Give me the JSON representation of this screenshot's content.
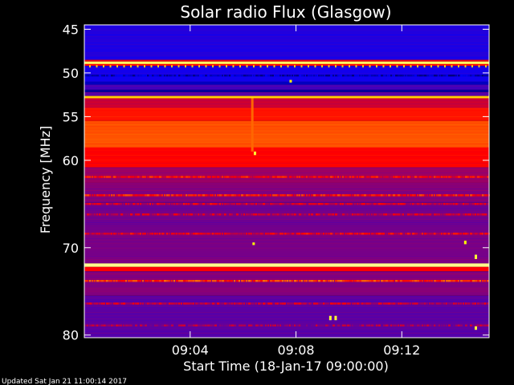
{
  "chart_data": {
    "type": "heatmap",
    "title": "Solar radio Flux (Glasgow)",
    "xlabel": "Start Time (18-Jan-17 09:00:00)",
    "ylabel": "Frequency [MHz]",
    "x_unit": "minutes",
    "x_range": [
      0,
      15.3
    ],
    "x_ticks": [
      {
        "value": 4,
        "label": "09:04"
      },
      {
        "value": 8,
        "label": "09:08"
      },
      {
        "value": 12,
        "label": "09:12"
      }
    ],
    "y_range": [
      44.5,
      80.3
    ],
    "y_inverted": true,
    "y_ticks": [
      {
        "value": 45,
        "label": "45"
      },
      {
        "value": 50,
        "label": "50"
      },
      {
        "value": 55,
        "label": "55"
      },
      {
        "value": 60,
        "label": "60"
      },
      {
        "value": 70,
        "label": "70"
      },
      {
        "value": 80,
        "label": "80"
      }
    ],
    "colormap": [
      "#000000",
      "#0000ff",
      "#ff0000",
      "#ffff00",
      "#ffffff"
    ],
    "bands": [
      {
        "from": 44.5,
        "to": 48.5,
        "level": 0.28
      },
      {
        "from": 48.5,
        "to": 48.7,
        "level": 0.48
      },
      {
        "from": 48.7,
        "to": 48.95,
        "level": 0.85
      },
      {
        "from": 48.95,
        "to": 49.2,
        "level": 0.5
      },
      {
        "from": 49.2,
        "to": 51.0,
        "level": 0.27
      },
      {
        "from": 51.0,
        "to": 51.3,
        "level": 0.18
      },
      {
        "from": 51.3,
        "to": 51.9,
        "level": 0.32
      },
      {
        "from": 51.9,
        "to": 52.2,
        "level": 0.15
      },
      {
        "from": 52.2,
        "to": 52.6,
        "level": 0.34
      },
      {
        "from": 52.6,
        "to": 52.9,
        "level": 0.7
      },
      {
        "from": 52.9,
        "to": 54.0,
        "level": 0.45
      },
      {
        "from": 54.0,
        "to": 55.5,
        "level": 0.52
      },
      {
        "from": 55.5,
        "to": 58.5,
        "level": 0.58
      },
      {
        "from": 58.5,
        "to": 60.8,
        "level": 0.5
      },
      {
        "from": 60.8,
        "to": 62.5,
        "level": 0.4
      },
      {
        "from": 62.5,
        "to": 64.8,
        "level": 0.38
      },
      {
        "from": 64.8,
        "to": 68.0,
        "level": 0.36
      },
      {
        "from": 68.0,
        "to": 71.8,
        "level": 0.37
      },
      {
        "from": 71.8,
        "to": 72.2,
        "level": 0.88
      },
      {
        "from": 72.2,
        "to": 72.7,
        "level": 0.5
      },
      {
        "from": 72.7,
        "to": 75.5,
        "level": 0.38
      },
      {
        "from": 75.5,
        "to": 80.3,
        "level": 0.34
      }
    ],
    "lines": [
      {
        "freq": 50.3,
        "level": 0.18
      },
      {
        "freq": 61.9,
        "level": 0.5
      },
      {
        "freq": 64.0,
        "level": 0.52
      },
      {
        "freq": 65.0,
        "level": 0.46
      },
      {
        "freq": 66.2,
        "level": 0.44
      },
      {
        "freq": 68.4,
        "level": 0.47
      },
      {
        "freq": 73.8,
        "level": 0.55
      },
      {
        "freq": 76.4,
        "level": 0.44
      },
      {
        "freq": 78.9,
        "level": 0.4
      }
    ],
    "events": [
      {
        "time": 6.35,
        "freq_from": 52.9,
        "freq_to": 59.0,
        "level": 0.6
      },
      {
        "time": 6.45,
        "freq_from": 59.0,
        "freq_to": 59.4,
        "level": 0.8
      },
      {
        "time": 7.8,
        "freq_from": 50.8,
        "freq_to": 51.1,
        "level": 0.75
      },
      {
        "time": 6.4,
        "freq_from": 69.4,
        "freq_to": 69.7,
        "level": 0.75
      },
      {
        "time": 9.3,
        "freq_from": 77.8,
        "freq_to": 78.3,
        "level": 0.8
      },
      {
        "time": 9.5,
        "freq_from": 77.8,
        "freq_to": 78.3,
        "level": 0.8
      },
      {
        "time": 14.4,
        "freq_from": 69.2,
        "freq_to": 69.6,
        "level": 0.75
      },
      {
        "time": 14.8,
        "freq_from": 70.8,
        "freq_to": 71.3,
        "level": 0.8
      },
      {
        "time": 14.8,
        "freq_from": 79.0,
        "freq_to": 79.4,
        "level": 0.8
      }
    ]
  },
  "footer": {
    "updated": "Updated Sat Jan 21 11:00:14 2017"
  }
}
